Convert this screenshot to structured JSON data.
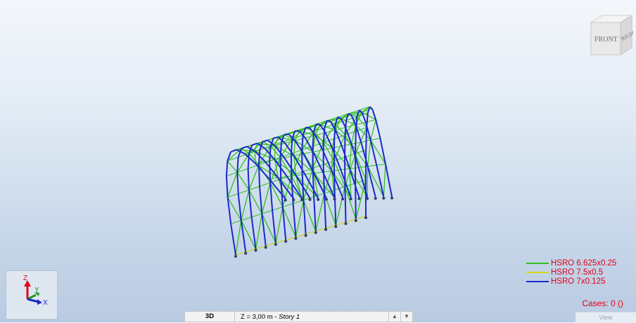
{
  "viewcube": {
    "front_label": "FRONT",
    "right_label": "RIGHT"
  },
  "axes": {
    "z": "Z",
    "y": "Y",
    "x": "X"
  },
  "legend": {
    "items": [
      {
        "label": "HSRO 6.625x0.25",
        "color": "#2fbf1f"
      },
      {
        "label": "HSRO 7.5x0.5",
        "color": "#d7d71c"
      },
      {
        "label": "HSRO 7x0.125",
        "color": "#1a2ac9"
      }
    ]
  },
  "cases": "Cases: 0 ()",
  "view_button": "View",
  "statusbar": {
    "mode": "3D",
    "level_prefix": "Z = 3,00 m - ",
    "level_story": "Story 1",
    "up_arrow": "▲",
    "down_arrow": "▼"
  },
  "colors": {
    "primary": "#1a2ac9",
    "secondary": "#2fbf1f",
    "tertiary": "#d7d71c",
    "support": "#2a3f6e",
    "accent": "#e2001a"
  }
}
